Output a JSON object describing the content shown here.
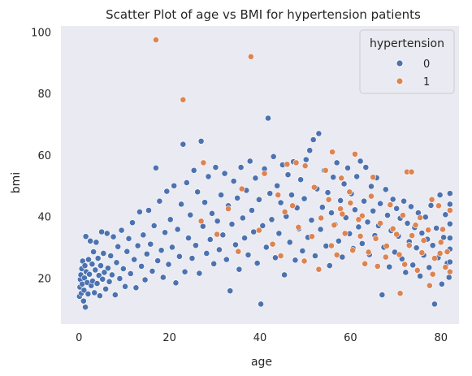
{
  "chart_data": {
    "type": "scatter",
    "title": "Scatter Plot of age vs BMI for hypertension patients",
    "xlabel": "age",
    "ylabel": "bmi",
    "xlim": [
      -4,
      84
    ],
    "ylim": [
      5,
      102
    ],
    "xticks": [
      0,
      20,
      40,
      60,
      80
    ],
    "yticks": [
      20,
      40,
      60,
      80,
      100
    ],
    "grid": false,
    "legend": {
      "title": "hypertension",
      "placement": "top-right"
    },
    "series": [
      {
        "name": "0",
        "color": "#4c72b0",
        "points": [
          [
            0.1,
            14
          ],
          [
            0.2,
            17
          ],
          [
            0.3,
            19.5
          ],
          [
            0.4,
            21
          ],
          [
            0.5,
            15
          ],
          [
            0.6,
            23
          ],
          [
            0.7,
            18
          ],
          [
            0.8,
            25.5
          ],
          [
            1,
            12.5
          ],
          [
            1.1,
            16
          ],
          [
            1.2,
            20
          ],
          [
            1.3,
            24
          ],
          [
            1.4,
            10.5
          ],
          [
            1.5,
            33.5
          ],
          [
            1.6,
            22
          ],
          [
            1.8,
            18.5
          ],
          [
            2,
            14.8
          ],
          [
            2.1,
            26
          ],
          [
            2.3,
            21.2
          ],
          [
            2.5,
            32
          ],
          [
            2.7,
            17.5
          ],
          [
            2.9,
            24.5
          ],
          [
            3,
            19
          ],
          [
            3.2,
            28.5
          ],
          [
            3.4,
            15.2
          ],
          [
            3.6,
            22.6
          ],
          [
            3.8,
            31.6
          ],
          [
            4,
            18.2
          ],
          [
            4.2,
            26.4
          ],
          [
            4.4,
            20.8
          ],
          [
            4.6,
            14.2
          ],
          [
            4.8,
            24
          ],
          [
            5,
            35
          ],
          [
            5.2,
            19.6
          ],
          [
            5.4,
            28
          ],
          [
            5.6,
            21.8
          ],
          [
            5.9,
            16.4
          ],
          [
            6.2,
            34.5
          ],
          [
            6.4,
            23.2
          ],
          [
            6.7,
            18.8
          ],
          [
            7,
            27.2
          ],
          [
            7.3,
            21
          ],
          [
            7.6,
            33.4
          ],
          [
            8,
            14.5
          ],
          [
            8.3,
            25
          ],
          [
            8.6,
            30.2
          ],
          [
            9,
            19.8
          ],
          [
            9.4,
            35.5
          ],
          [
            9.8,
            23
          ],
          [
            10.2,
            17.2
          ],
          [
            10.6,
            28.6
          ],
          [
            11,
            32.8
          ],
          [
            11.4,
            21.4
          ],
          [
            11.8,
            38
          ],
          [
            12.2,
            26
          ],
          [
            12.6,
            16.8
          ],
          [
            13,
            30.5
          ],
          [
            13.4,
            41.5
          ],
          [
            13.8,
            23.8
          ],
          [
            14.2,
            34
          ],
          [
            14.6,
            19.4
          ],
          [
            15,
            27.8
          ],
          [
            15.4,
            42
          ],
          [
            15.8,
            31
          ],
          [
            16.2,
            22.2
          ],
          [
            16.6,
            37
          ],
          [
            17,
            55.8
          ],
          [
            17.4,
            25.6
          ],
          [
            17.8,
            45
          ],
          [
            18.2,
            29
          ],
          [
            18.6,
            20.2
          ],
          [
            19,
            34.8
          ],
          [
            19.4,
            48.2
          ],
          [
            19.8,
            24.4
          ],
          [
            20.2,
            39
          ],
          [
            20.6,
            30
          ],
          [
            21,
            50
          ],
          [
            21.4,
            18.4
          ],
          [
            21.8,
            35.8
          ],
          [
            22.2,
            27
          ],
          [
            22.6,
            44
          ],
          [
            23,
            63.5
          ],
          [
            23.4,
            22
          ],
          [
            23.8,
            51
          ],
          [
            24.2,
            33
          ],
          [
            24.6,
            40.5
          ],
          [
            25,
            26.4
          ],
          [
            25.4,
            55
          ],
          [
            25.8,
            30.6
          ],
          [
            26.2,
            48
          ],
          [
            26.6,
            21.5
          ],
          [
            27,
            64.5
          ],
          [
            27.4,
            36.8
          ],
          [
            27.8,
            44.6
          ],
          [
            28.2,
            28
          ],
          [
            28.6,
            53
          ],
          [
            29,
            32.5
          ],
          [
            29.4,
            41
          ],
          [
            29.8,
            24.6
          ],
          [
            30.2,
            56
          ],
          [
            30.6,
            38.5
          ],
          [
            31,
            29.2
          ],
          [
            31.4,
            47
          ],
          [
            31.8,
            34
          ],
          [
            32.2,
            54
          ],
          [
            32.6,
            26
          ],
          [
            33,
            43.5
          ],
          [
            33.4,
            15.8
          ],
          [
            33.8,
            37.5
          ],
          [
            34.2,
            51.5
          ],
          [
            34.6,
            30.8
          ],
          [
            35,
            46
          ],
          [
            35.4,
            22.8
          ],
          [
            35.8,
            56
          ],
          [
            36.2,
            39.5
          ],
          [
            36.6,
            33
          ],
          [
            37,
            48.5
          ],
          [
            37.4,
            27.5
          ],
          [
            37.8,
            58
          ],
          [
            38.2,
            42
          ],
          [
            38.6,
            35
          ],
          [
            39,
            52.5
          ],
          [
            39.4,
            24.8
          ],
          [
            39.8,
            45.5
          ],
          [
            40.2,
            11.5
          ],
          [
            40.6,
            37
          ],
          [
            41,
            55.5
          ],
          [
            41.4,
            30
          ],
          [
            41.8,
            72
          ],
          [
            42.2,
            47.5
          ],
          [
            42.6,
            39
          ],
          [
            43,
            59.5
          ],
          [
            43.4,
            26.6
          ],
          [
            43.8,
            50
          ],
          [
            44.2,
            34.5
          ],
          [
            44.6,
            44.5
          ],
          [
            45,
            56.8
          ],
          [
            45.4,
            21
          ],
          [
            45.8,
            40
          ],
          [
            46.2,
            53.6
          ],
          [
            46.6,
            31.6
          ],
          [
            47,
            47
          ],
          [
            47.4,
            57.8
          ],
          [
            47.8,
            25.8
          ],
          [
            48.2,
            42.8
          ],
          [
            48.6,
            36
          ],
          [
            49,
            52
          ],
          [
            49.4,
            28.8
          ],
          [
            49.8,
            45.8
          ],
          [
            50.2,
            58.5
          ],
          [
            50.6,
            33.2
          ],
          [
            51,
            61.5
          ],
          [
            51.4,
            38.8
          ],
          [
            51.8,
            65
          ],
          [
            52.2,
            27.2
          ],
          [
            52.6,
            49
          ],
          [
            53,
            67
          ],
          [
            53.4,
            35.8
          ],
          [
            53.8,
            43
          ],
          [
            54.2,
            55
          ],
          [
            54.6,
            30.4
          ],
          [
            55,
            47.8
          ],
          [
            55.4,
            24
          ],
          [
            55.8,
            41.2
          ],
          [
            56.2,
            52.8
          ],
          [
            56.6,
            37.4
          ],
          [
            57,
            57.5
          ],
          [
            57.4,
            32
          ],
          [
            57.8,
            45.2
          ],
          [
            58.2,
            26.8
          ],
          [
            58.6,
            50.6
          ],
          [
            59,
            39.6
          ],
          [
            59.4,
            55.8
          ],
          [
            59.8,
            34.4
          ],
          [
            60.2,
            47.4
          ],
          [
            60.6,
            29.6
          ],
          [
            61,
            42.2
          ],
          [
            61.4,
            53
          ],
          [
            61.8,
            36.6
          ],
          [
            62.2,
            58
          ],
          [
            62.6,
            31.2
          ],
          [
            63,
            45
          ],
          [
            63.4,
            56
          ],
          [
            63.8,
            38.2
          ],
          [
            64.2,
            27.6
          ],
          [
            64.6,
            49.8
          ],
          [
            65,
            41.8
          ],
          [
            65.4,
            33.8
          ],
          [
            65.8,
            52.6
          ],
          [
            66.2,
            37
          ],
          [
            66.6,
            44.2
          ],
          [
            67,
            14.5
          ],
          [
            67.4,
            30
          ],
          [
            67.8,
            48.8
          ],
          [
            68.2,
            40.4
          ],
          [
            68.6,
            23.6
          ],
          [
            69,
            35.4
          ],
          [
            69.4,
            45.6
          ],
          [
            69.8,
            28.4
          ],
          [
            70.2,
            42.6
          ],
          [
            70.6,
            33.6
          ],
          [
            71,
            39.4
          ],
          [
            71.4,
            26.2
          ],
          [
            71.8,
            45
          ],
          [
            72.2,
            21.8
          ],
          [
            72.6,
            37.8
          ],
          [
            73,
            31.8
          ],
          [
            73.4,
            43.2
          ],
          [
            73.8,
            24.2
          ],
          [
            74.2,
            36.4
          ],
          [
            74.6,
            29.8
          ],
          [
            75,
            41.2
          ],
          [
            75.4,
            20.6
          ],
          [
            75.8,
            34.6
          ],
          [
            76.2,
            27.4
          ],
          [
            76.6,
            39.8
          ],
          [
            77,
            32.6
          ],
          [
            77.4,
            23.4
          ],
          [
            77.8,
            43.6
          ],
          [
            78.2,
            30.6
          ],
          [
            78.6,
            11.5
          ],
          [
            79,
            36.2
          ],
          [
            79.4,
            26.6
          ],
          [
            79.8,
            47
          ],
          [
            80.2,
            18
          ],
          [
            80.6,
            33.2
          ],
          [
            81,
            40.6
          ],
          [
            81.4,
            24.8
          ],
          [
            81.8,
            20.2
          ],
          [
            82,
            47.5
          ],
          [
            82,
            37.6
          ],
          [
            82,
            29.4
          ],
          [
            82,
            25.2
          ],
          [
            82,
            33
          ],
          [
            82,
            44
          ]
        ]
      },
      {
        "name": "1",
        "color": "#dd8452",
        "points": [
          [
            17,
            97.5
          ],
          [
            23,
            78
          ],
          [
            38,
            92
          ],
          [
            27.5,
            57.5
          ],
          [
            41,
            54
          ],
          [
            46,
            57
          ],
          [
            48,
            57.5
          ],
          [
            50,
            56.5
          ],
          [
            54.5,
            55
          ],
          [
            56,
            61
          ],
          [
            61,
            60.3
          ],
          [
            58,
            52.5
          ],
          [
            65,
            52.8
          ],
          [
            72.5,
            54.5
          ],
          [
            73.5,
            54.5
          ],
          [
            78,
            45.5
          ],
          [
            79.5,
            43.5
          ],
          [
            82,
            42
          ],
          [
            36,
            49
          ],
          [
            44,
            47
          ],
          [
            52,
            49.5
          ],
          [
            55.2,
            45.5
          ],
          [
            57.8,
            42.5
          ],
          [
            59.8,
            48
          ],
          [
            62.6,
            40.2
          ],
          [
            64.6,
            46.6
          ],
          [
            66.6,
            37.8
          ],
          [
            68.8,
            43.8
          ],
          [
            70.2,
            34.2
          ],
          [
            71.6,
            40.4
          ],
          [
            73,
            30.6
          ],
          [
            74.4,
            37.2
          ],
          [
            75.8,
            28.2
          ],
          [
            77.2,
            35.6
          ],
          [
            78.6,
            26.4
          ],
          [
            80,
            31.6
          ],
          [
            81.4,
            28.5
          ],
          [
            82,
            22
          ],
          [
            71,
            15
          ],
          [
            77.5,
            17.5
          ],
          [
            81,
            23.5
          ],
          [
            45.5,
            41.5
          ],
          [
            48.5,
            36.5
          ],
          [
            51.5,
            33.5
          ],
          [
            53.5,
            39.5
          ],
          [
            55.8,
            30.5
          ],
          [
            57,
            27.5
          ],
          [
            58.8,
            34.5
          ],
          [
            60.5,
            29
          ],
          [
            61.8,
            39
          ],
          [
            63.2,
            24.6
          ],
          [
            65.6,
            32.8
          ],
          [
            67.8,
            26.8
          ],
          [
            69.4,
            36
          ],
          [
            72,
            24.4
          ],
          [
            74.8,
            22.5
          ],
          [
            76.2,
            32.2
          ],
          [
            78.2,
            21.2
          ],
          [
            79.8,
            28
          ],
          [
            42.8,
            31
          ],
          [
            39.8,
            35.5
          ],
          [
            35.2,
            28.6
          ],
          [
            30.5,
            34.2
          ],
          [
            27,
            38.5
          ],
          [
            33,
            42.5
          ],
          [
            44.6,
            27.2
          ],
          [
            47.2,
            43.5
          ],
          [
            49.8,
            25.5
          ],
          [
            53,
            22.8
          ],
          [
            56.4,
            37.2
          ],
          [
            58.2,
            40.8
          ],
          [
            60,
            44.4
          ],
          [
            62.2,
            33.6
          ],
          [
            64,
            28.4
          ],
          [
            66,
            23.8
          ],
          [
            68,
            30.4
          ],
          [
            70.8,
            27.6
          ],
          [
            73.6,
            33.8
          ],
          [
            75.4,
            39.6
          ],
          [
            80.4,
            35.8
          ]
        ]
      }
    ]
  }
}
